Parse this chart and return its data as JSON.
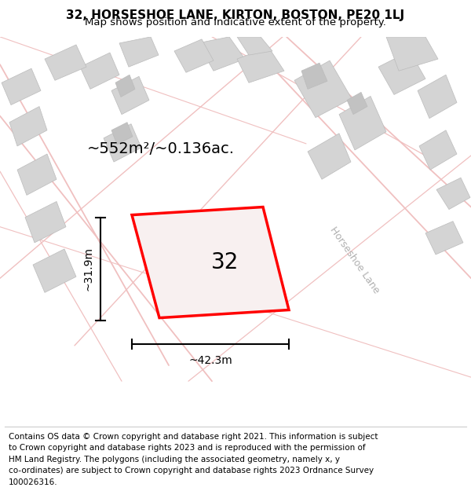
{
  "title": "32, HORSESHOE LANE, KIRTON, BOSTON, PE20 1LJ",
  "subtitle": "Map shows position and indicative extent of the property.",
  "area_label": "~552m²/~0.136ac.",
  "number_label": "32",
  "width_label": "~42.3m",
  "height_label": "~31.9m",
  "map_bg": "#efeeee",
  "road_color": "#f0c0c0",
  "building_color": "#d4d4d4",
  "building_edge": "#bbbbbb",
  "plot_color": "#ff0000",
  "plot_fill": "#f8f0f0",
  "title_fontsize": 11,
  "subtitle_fontsize": 9.5,
  "footer_fontsize": 7.5,
  "road_label": "Horseshoe Lane",
  "footer_lines": [
    "Contains OS data © Crown copyright and database right 2021. This information is subject",
    "to Crown copyright and database rights 2023 and is reproduced with the permission of",
    "HM Land Registry. The polygons (including the associated geometry, namely x, y",
    "co-ordinates) are subject to Crown copyright and database rights 2023 Ordnance Survey",
    "100026316."
  ]
}
